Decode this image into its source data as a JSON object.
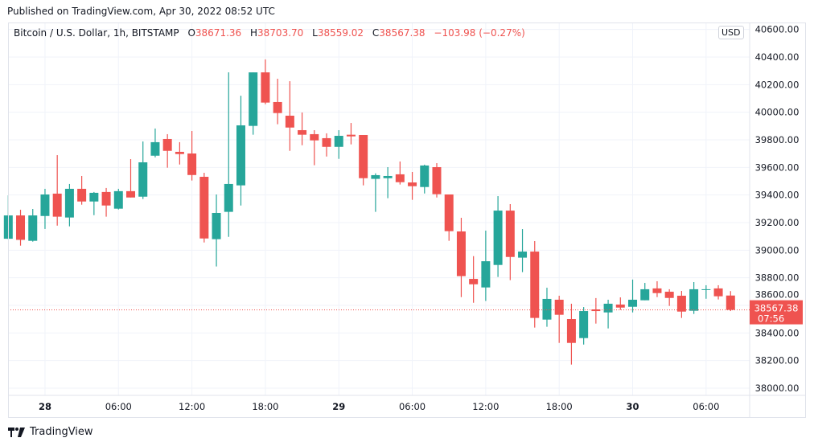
{
  "header": {
    "published": "Published on TradingView.com, Apr 30, 2022 08:52 UTC"
  },
  "legend": {
    "symbol": "Bitcoin / U.S. Dollar, 1h, BITSTAMP",
    "o_label": "O",
    "o": "38671.36",
    "h_label": "H",
    "h": "38703.70",
    "l_label": "L",
    "l": "38559.02",
    "c_label": "C",
    "c": "38567.38",
    "change": "−103.98 (−0.27%)"
  },
  "currency_badge": "USD",
  "last_price": {
    "value": "38567.38",
    "countdown": "07:56"
  },
  "brand": {
    "name": "TradingView"
  },
  "colors": {
    "up": "#26a69a",
    "down": "#ef5350",
    "grid": "#f0f3fa",
    "text": "#131722"
  },
  "chart_data": {
    "type": "candlestick",
    "interval": "1h",
    "y_ticks": [
      "40600.00",
      "40400.00",
      "40200.00",
      "40000.00",
      "39800.00",
      "39600.00",
      "39400.00",
      "39200.00",
      "39000.00",
      "38800.00",
      "38600.00",
      "38400.00",
      "38200.00",
      "38000.00"
    ],
    "x_ticks": [
      {
        "time": "2022-04-28 00:00",
        "label": "28",
        "bold": true
      },
      {
        "time": "2022-04-28 06:00",
        "label": "06:00"
      },
      {
        "time": "2022-04-28 12:00",
        "label": "12:00"
      },
      {
        "time": "2022-04-28 18:00",
        "label": "18:00"
      },
      {
        "time": "2022-04-29 00:00",
        "label": "29",
        "bold": true
      },
      {
        "time": "2022-04-29 06:00",
        "label": "06:00"
      },
      {
        "time": "2022-04-29 12:00",
        "label": "12:00"
      },
      {
        "time": "2022-04-29 18:00",
        "label": "18:00"
      },
      {
        "time": "2022-04-30 00:00",
        "label": "30",
        "bold": true
      },
      {
        "time": "2022-04-30 06:00",
        "label": "06:00"
      }
    ],
    "ylim": [
      37950,
      40660
    ],
    "grid": true,
    "columns": [
      "time",
      "open",
      "high",
      "low",
      "close"
    ],
    "candles": [
      [
        "2022-04-27 21:00",
        39083,
        39398,
        39080,
        39252
      ],
      [
        "2022-04-27 22:00",
        39252,
        39293,
        39033,
        39075
      ],
      [
        "2022-04-27 23:00",
        39068,
        39299,
        39062,
        39252
      ],
      [
        "2022-04-28 00:00",
        39248,
        39445,
        39154,
        39404
      ],
      [
        "2022-04-28 01:00",
        39410,
        39689,
        39178,
        39243
      ],
      [
        "2022-04-28 02:00",
        39237,
        39480,
        39173,
        39445
      ],
      [
        "2022-04-28 03:00",
        39445,
        39538,
        39330,
        39353
      ],
      [
        "2022-04-28 04:00",
        39353,
        39422,
        39254,
        39416
      ],
      [
        "2022-04-28 05:00",
        39422,
        39451,
        39243,
        39324
      ],
      [
        "2022-04-28 06:00",
        39301,
        39445,
        39295,
        39428
      ],
      [
        "2022-04-28 07:00",
        39428,
        39660,
        39382,
        39382
      ],
      [
        "2022-04-28 08:00",
        39388,
        39788,
        39371,
        39637
      ],
      [
        "2022-04-28 09:00",
        39685,
        39882,
        39673,
        39783
      ],
      [
        "2022-04-28 10:00",
        39806,
        39841,
        39598,
        39720
      ],
      [
        "2022-04-28 11:00",
        39713,
        39783,
        39621,
        39697
      ],
      [
        "2022-04-28 12:00",
        39701,
        39864,
        39505,
        39545
      ],
      [
        "2022-04-28 13:00",
        39532,
        39561,
        39056,
        39085
      ],
      [
        "2022-04-28 14:00",
        39080,
        39404,
        38882,
        39270
      ],
      [
        "2022-04-28 15:00",
        39278,
        40289,
        39097,
        39480
      ],
      [
        "2022-04-28 16:00",
        39470,
        40120,
        39324,
        39905
      ],
      [
        "2022-04-28 17:00",
        39901,
        40289,
        39837,
        40289
      ],
      [
        "2022-04-28 18:00",
        40289,
        40383,
        40058,
        40070
      ],
      [
        "2022-04-28 19:00",
        40074,
        40243,
        39913,
        39994
      ],
      [
        "2022-04-28 20:00",
        39975,
        40225,
        39720,
        39889
      ],
      [
        "2022-04-28 21:00",
        39870,
        39998,
        39761,
        39837
      ],
      [
        "2022-04-28 22:00",
        39841,
        39870,
        39616,
        39796
      ],
      [
        "2022-04-28 23:00",
        39812,
        39847,
        39679,
        39749
      ],
      [
        "2022-04-29 00:00",
        39749,
        39870,
        39662,
        39829
      ],
      [
        "2022-04-29 01:00",
        39837,
        39922,
        39767,
        39825
      ],
      [
        "2022-04-29 02:00",
        39835,
        39835,
        39470,
        39522
      ],
      [
        "2022-04-29 03:00",
        39517,
        39557,
        39278,
        39544
      ],
      [
        "2022-04-29 04:00",
        39522,
        39602,
        39377,
        39538
      ],
      [
        "2022-04-29 05:00",
        39550,
        39643,
        39476,
        39493
      ],
      [
        "2022-04-29 06:00",
        39491,
        39567,
        39365,
        39464
      ],
      [
        "2022-04-29 07:00",
        39458,
        39620,
        39411,
        39614
      ],
      [
        "2022-04-29 08:00",
        39602,
        39631,
        39382,
        39406
      ],
      [
        "2022-04-29 09:00",
        39404,
        39404,
        39068,
        39138
      ],
      [
        "2022-04-29 10:00",
        39136,
        39235,
        38660,
        38812
      ],
      [
        "2022-04-29 11:00",
        38792,
        38957,
        38619,
        38753
      ],
      [
        "2022-04-29 12:00",
        38730,
        39142,
        38632,
        38920
      ],
      [
        "2022-04-29 13:00",
        38893,
        39392,
        38806,
        39287
      ],
      [
        "2022-04-29 14:00",
        39287,
        39334,
        38783,
        38951
      ],
      [
        "2022-04-29 15:00",
        38946,
        39153,
        38841,
        38990
      ],
      [
        "2022-04-29 16:00",
        38990,
        39066,
        38439,
        38509
      ],
      [
        "2022-04-29 17:00",
        38497,
        38728,
        38445,
        38647
      ],
      [
        "2022-04-29 18:00",
        38641,
        38670,
        38328,
        38532
      ],
      [
        "2022-04-29 19:00",
        38501,
        38612,
        38171,
        38328
      ],
      [
        "2022-04-29 20:00",
        38363,
        38588,
        38316,
        38559
      ],
      [
        "2022-04-29 21:00",
        38571,
        38653,
        38468,
        38559
      ],
      [
        "2022-04-29 22:00",
        38549,
        38641,
        38433,
        38612
      ],
      [
        "2022-04-29 23:00",
        38606,
        38658,
        38567,
        38584
      ],
      [
        "2022-04-30 00:00",
        38590,
        38787,
        38549,
        38641
      ],
      [
        "2022-04-30 01:00",
        38637,
        38763,
        38637,
        38717
      ],
      [
        "2022-04-30 02:00",
        38723,
        38775,
        38660,
        38689
      ],
      [
        "2022-04-30 03:00",
        38699,
        38717,
        38596,
        38654
      ],
      [
        "2022-04-30 04:00",
        38670,
        38705,
        38509,
        38555
      ],
      [
        "2022-04-30 05:00",
        38561,
        38769,
        38538,
        38717
      ],
      [
        "2022-04-30 06:00",
        38716,
        38746,
        38648,
        38717
      ],
      [
        "2022-04-30 07:00",
        38723,
        38746,
        38643,
        38666
      ],
      [
        "2022-04-30 08:00",
        38671.36,
        38703.7,
        38559.02,
        38567.38
      ]
    ]
  }
}
